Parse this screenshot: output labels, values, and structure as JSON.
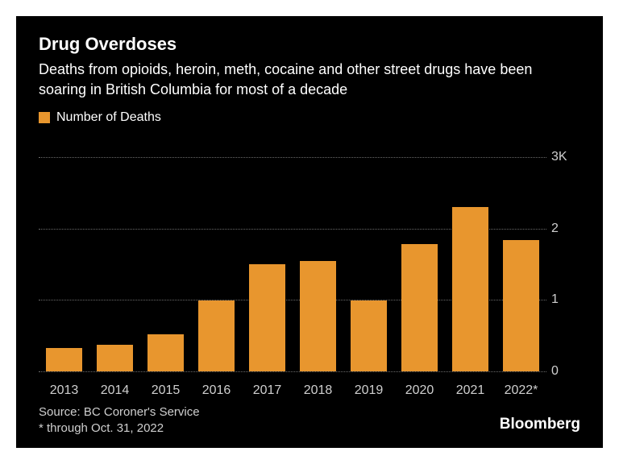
{
  "chart": {
    "type": "bar",
    "background_color": "#000000",
    "text_color": "#ffffff",
    "muted_text_color": "#cfcfcf",
    "title": "Drug Overdoses",
    "title_fontsize": 22,
    "subtitle": "Deaths from opioids, heroin, meth, cocaine and other street drugs have been soaring in British Columbia for most of a decade",
    "subtitle_fontsize": 18,
    "legend_label": "Number of Deaths",
    "legend_fontsize": 16,
    "bar_color": "#e8962e",
    "grid_color": "#6a6a6a",
    "categories": [
      "2013",
      "2014",
      "2015",
      "2016",
      "2017",
      "2018",
      "2019",
      "2020",
      "2021",
      "2022*"
    ],
    "values": [
      0.33,
      0.37,
      0.52,
      0.99,
      1.5,
      1.55,
      0.99,
      1.78,
      2.3,
      1.84
    ],
    "ymin": 0,
    "ymax": 3,
    "yticks": [
      0,
      1,
      2,
      3
    ],
    "ytick_labels": [
      "0",
      "1",
      "2",
      "3K"
    ],
    "axis_fontsize": 16,
    "source": "Source: BC Coroner's Service",
    "footnote": "* through Oct. 31, 2022",
    "footnote_fontsize": 15,
    "brand": "Bloomberg",
    "brand_fontsize": 19
  }
}
